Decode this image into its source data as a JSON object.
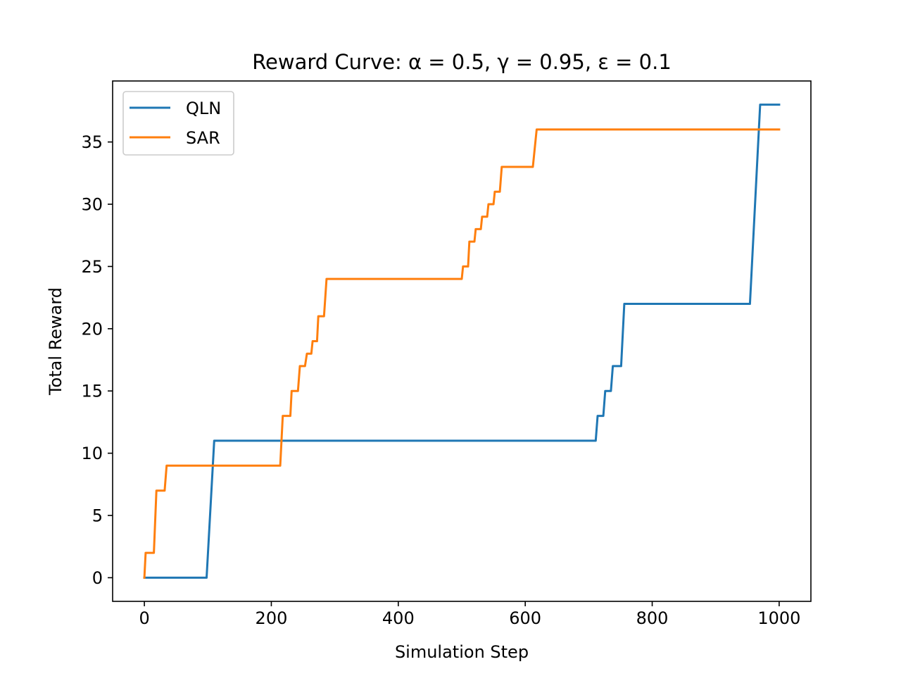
{
  "chart_data": {
    "type": "line",
    "title": "Reward Curve: α = 0.5, γ = 0.95, ε = 0.1",
    "xlabel": "Simulation Step",
    "ylabel": "Total Reward",
    "xlim": [
      -50,
      1050
    ],
    "ylim": [
      -1.9,
      39.9
    ],
    "xticks": [
      0,
      200,
      400,
      600,
      800,
      1000
    ],
    "yticks": [
      0,
      5,
      10,
      15,
      20,
      25,
      30,
      35
    ],
    "grid": false,
    "legend_position": "top-left",
    "series": [
      {
        "name": "QLN",
        "color": "#1f77b4",
        "points": [
          [
            0,
            0
          ],
          [
            98,
            0
          ],
          [
            110,
            11
          ],
          [
            711,
            11
          ],
          [
            714,
            13
          ],
          [
            723,
            13
          ],
          [
            726,
            15
          ],
          [
            735,
            15
          ],
          [
            738,
            17
          ],
          [
            751,
            17
          ],
          [
            756,
            22
          ],
          [
            954,
            22
          ],
          [
            970,
            38
          ],
          [
            1000,
            38
          ]
        ]
      },
      {
        "name": "SAR",
        "color": "#ff7f0e",
        "points": [
          [
            0,
            0
          ],
          [
            2,
            2
          ],
          [
            15,
            2
          ],
          [
            19,
            7
          ],
          [
            32,
            7
          ],
          [
            35,
            9
          ],
          [
            214,
            9
          ],
          [
            218,
            13
          ],
          [
            230,
            13
          ],
          [
            232,
            15
          ],
          [
            242,
            15
          ],
          [
            245,
            17
          ],
          [
            253,
            17
          ],
          [
            256,
            18
          ],
          [
            263,
            18
          ],
          [
            265,
            19
          ],
          [
            272,
            19
          ],
          [
            274,
            21
          ],
          [
            283,
            21
          ],
          [
            287,
            24
          ],
          [
            500,
            24
          ],
          [
            502,
            25
          ],
          [
            510,
            25
          ],
          [
            512,
            27
          ],
          [
            520,
            27
          ],
          [
            522,
            28
          ],
          [
            530,
            28
          ],
          [
            532,
            29
          ],
          [
            540,
            29
          ],
          [
            542,
            30
          ],
          [
            550,
            30
          ],
          [
            552,
            31
          ],
          [
            560,
            31
          ],
          [
            563,
            33
          ],
          [
            612,
            33
          ],
          [
            618,
            36
          ],
          [
            1000,
            36
          ]
        ]
      }
    ]
  }
}
